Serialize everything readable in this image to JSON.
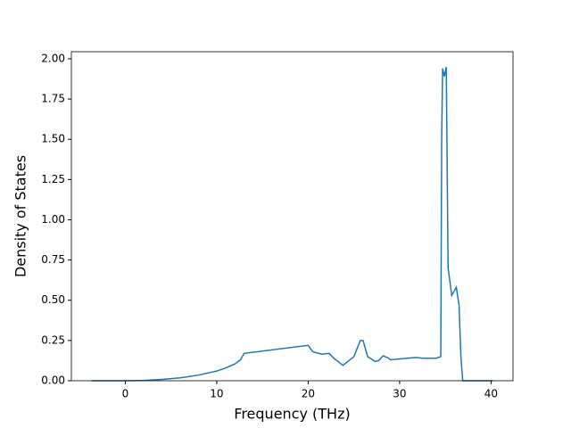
{
  "chart_data": {
    "type": "line",
    "xlabel": "Frequency (THz)",
    "ylabel": "Density of States",
    "xlim": [
      -5.9,
      42.4
    ],
    "ylim": [
      0,
      2.044
    ],
    "xticks": [
      0,
      10,
      20,
      30,
      40
    ],
    "yticks": [
      {
        "value": 0,
        "label": "0.00"
      },
      {
        "value": 0.25,
        "label": "0.25"
      },
      {
        "value": 0.5,
        "label": "0.50"
      },
      {
        "value": 0.75,
        "label": "0.75"
      },
      {
        "value": 1,
        "label": "1.00"
      },
      {
        "value": 1.25,
        "label": "1.25"
      },
      {
        "value": 1.5,
        "label": "1.50"
      },
      {
        "value": 1.75,
        "label": "1.75"
      },
      {
        "value": 2,
        "label": "2.00"
      }
    ],
    "series": [
      {
        "color": "#1f77b4",
        "x": [
          -3.7,
          0,
          2,
          4,
          6,
          8,
          10,
          11,
          12,
          12.6,
          13,
          20,
          20.5,
          21.5,
          22.3,
          22.8,
          23.8,
          25,
          25.7,
          26,
          26.5,
          27.3,
          27.7,
          28.2,
          28.8,
          29,
          31.8,
          32.5,
          34,
          34.5,
          34.6,
          34.7,
          34.9,
          35.1,
          35.3,
          35.7,
          36.2,
          36.5,
          36.7,
          36.9,
          40.2
        ],
        "values": [
          0,
          0,
          0.002,
          0.008,
          0.018,
          0.035,
          0.06,
          0.08,
          0.105,
          0.13,
          0.17,
          0.22,
          0.18,
          0.165,
          0.17,
          0.14,
          0.095,
          0.15,
          0.25,
          0.25,
          0.15,
          0.12,
          0.125,
          0.155,
          0.14,
          0.13,
          0.145,
          0.14,
          0.14,
          0.15,
          1.5,
          1.94,
          1.89,
          1.95,
          0.7,
          0.53,
          0.58,
          0.47,
          0.15,
          0,
          0
        ]
      }
    ]
  }
}
